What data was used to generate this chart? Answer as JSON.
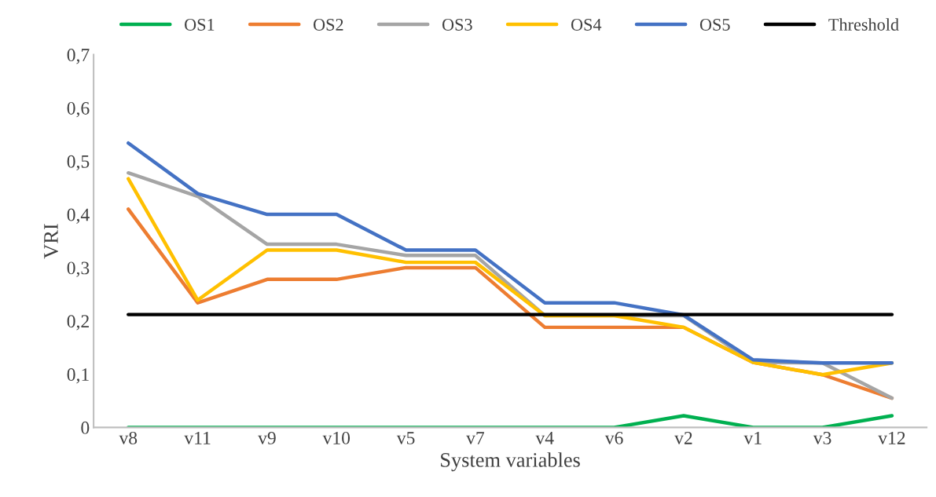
{
  "chart_data": {
    "type": "line",
    "xlabel": "System variables",
    "ylabel": "VRI",
    "categories": [
      "v8",
      "v11",
      "v9",
      "v10",
      "v5",
      "v7",
      "v4",
      "v6",
      "v2",
      "v1",
      "v3",
      "v12"
    ],
    "series": [
      {
        "name": "OS1",
        "color": "#00b050",
        "values": [
          0,
          0,
          0,
          0,
          0,
          0,
          0,
          0,
          0.022,
          0,
          0,
          0.022
        ]
      },
      {
        "name": "OS2",
        "color": "#ed7d31",
        "values": [
          0.41,
          0.234,
          0.278,
          0.278,
          0.3,
          0.3,
          0.188,
          0.188,
          0.188,
          0.122,
          0.099,
          0.055
        ]
      },
      {
        "name": "OS3",
        "color": "#a5a5a5",
        "values": [
          0.478,
          0.434,
          0.344,
          0.344,
          0.323,
          0.323,
          0.21,
          0.21,
          0.21,
          0.122,
          0.121,
          0.055
        ]
      },
      {
        "name": "OS4",
        "color": "#ffc000",
        "values": [
          0.467,
          0.239,
          0.333,
          0.333,
          0.31,
          0.31,
          0.21,
          0.21,
          0.188,
          0.122,
          0.099,
          0.121
        ]
      },
      {
        "name": "OS5",
        "color": "#4472c4",
        "values": [
          0.534,
          0.439,
          0.4,
          0.4,
          0.333,
          0.333,
          0.234,
          0.234,
          0.211,
          0.127,
          0.121,
          0.121
        ]
      },
      {
        "name": "Threshold",
        "color": "#000000",
        "values": [
          0.212,
          0.212,
          0.212,
          0.212,
          0.212,
          0.212,
          0.212,
          0.212,
          0.212,
          0.212,
          0.212,
          0.212
        ]
      }
    ],
    "ylim": [
      0,
      0.7
    ],
    "yticks": [
      0,
      {
        "value": 0.1,
        "label": "0,1"
      },
      {
        "value": 0.2,
        "label": "0,2"
      },
      {
        "value": 0.3,
        "label": "0,3"
      },
      {
        "value": 0.4,
        "label": "0,4"
      },
      {
        "value": 0.5,
        "label": "0,5"
      },
      {
        "value": 0.6,
        "label": "0,6"
      },
      {
        "value": 0.7,
        "label": "0,7"
      }
    ],
    "legend": "top",
    "grid": false,
    "marker": "none",
    "line_style": "solid"
  }
}
